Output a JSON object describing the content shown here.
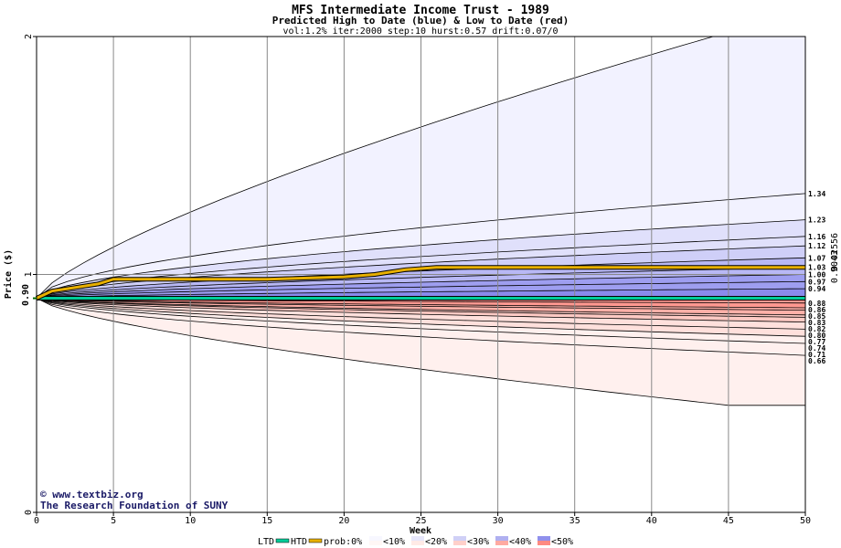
{
  "chart_data": {
    "type": "area",
    "title": "MFS Intermediate Income Trust - 1989",
    "subtitle": "Predicted High to Date (blue) &  Low to Date (red)",
    "params": "vol:1.2% iter:2000 step:10 hurst:0.57 drift:0.07/0",
    "xlabel": "Week",
    "ylabel": "Price ($)",
    "xlim": [
      0,
      50
    ],
    "ylim": [
      0,
      2
    ],
    "x_ticks": [
      0,
      5,
      10,
      15,
      20,
      25,
      30,
      35,
      40,
      45,
      50
    ],
    "y_ticks": [
      "0",
      "1",
      "2"
    ],
    "current_price": 0.9,
    "current_price_label": "0.90",
    "right_edge_labels": [
      "0.9043",
      "0.02556"
    ],
    "high_band_end_values": [
      "1.34",
      "1.23",
      "1.16",
      "1.12",
      "1.07",
      "1.03",
      "1.00",
      "0.97",
      "0.94"
    ],
    "low_band_end_values": [
      "0.88",
      "0.86",
      "0.85",
      "0.83",
      "0.82",
      "0.80",
      "0.77",
      "0.74",
      "0.71",
      "0.66"
    ],
    "high_envelope_end": 2.0,
    "low_envelope_end": 0.45,
    "series": [
      {
        "name": "LTD",
        "color": "#00cc99",
        "x": [
          0,
          5,
          10,
          20,
          30,
          40,
          50
        ],
        "y": [
          0.9,
          0.9,
          0.9,
          0.9,
          0.9,
          0.9,
          0.9
        ]
      },
      {
        "name": "HTD",
        "color": "#e8b000",
        "x": [
          0,
          1,
          2,
          3,
          4,
          5,
          10,
          15,
          20,
          22,
          23,
          24,
          26,
          30,
          40,
          50
        ],
        "y": [
          0.9,
          0.93,
          0.94,
          0.95,
          0.96,
          0.98,
          0.98,
          0.98,
          0.99,
          1.0,
          1.01,
          1.02,
          1.03,
          1.03,
          1.03,
          1.03
        ]
      }
    ],
    "legend": {
      "ltd": "LTD",
      "htd": "HTD",
      "prob": "prob:0%",
      "bins": [
        "<10%",
        "<20%",
        "<30%",
        "<40%",
        "<50%"
      ]
    }
  },
  "credits": {
    "site": "www.textbiz.org",
    "org": "The Research Foundation of SUNY"
  },
  "colors": {
    "blue_bands": [
      "#f2f2ff",
      "#e0e0fb",
      "#cfcff8",
      "#b8b8f4",
      "#9e9ef0",
      "#8a8aec"
    ],
    "red_bands": [
      "#fff0ee",
      "#ffe0dc",
      "#ffcac4",
      "#ffb0a8",
      "#ff9890"
    ],
    "grid": "#888888"
  }
}
